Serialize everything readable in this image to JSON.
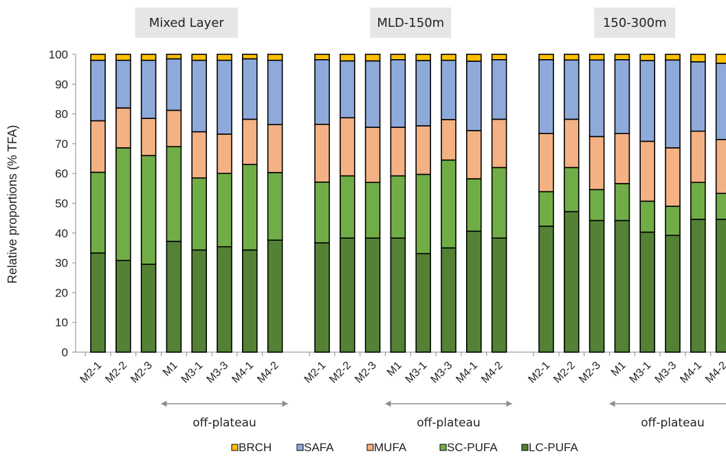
{
  "chart_data": {
    "type": "bar",
    "stacked": true,
    "ylabel": "Relative proportions (% TFA)",
    "ylim": [
      0,
      100
    ],
    "yticks": [
      "0",
      "10",
      "20",
      "30",
      "40",
      "50",
      "60",
      "70",
      "80",
      "90",
      "100"
    ],
    "categories": [
      "M2-1",
      "M2-2",
      "M2-3",
      "M1",
      "M3-1",
      "M3-3",
      "M4-1",
      "M4-2"
    ],
    "group_note": "off-plateau",
    "colors": {
      "BRCH": "#ffc000",
      "SAFA": "#8eaadb",
      "MUFA": "#f4b183",
      "SC-PUFA": "#70ad47",
      "LC-PUFA": "#548235"
    },
    "legend": [
      "BRCH",
      "SAFA",
      "MUFA",
      "SC-PUFA",
      "LC-PUFA"
    ],
    "panels": [
      {
        "title": "Mixed Layer",
        "series": [
          {
            "name": "LC-PUFA",
            "values": [
              33.3,
              30.8,
              29.5,
              37.2,
              34.3,
              35.4,
              34.3,
              37.6
            ]
          },
          {
            "name": "SC-PUFA",
            "values": [
              27.1,
              37.8,
              36.5,
              31.8,
              24.2,
              24.6,
              28.7,
              22.7
            ]
          },
          {
            "name": "MUFA",
            "values": [
              17.3,
              13.4,
              12.5,
              12.2,
              15.5,
              13.2,
              15.2,
              16.1
            ]
          },
          {
            "name": "SAFA",
            "values": [
              20.3,
              16.0,
              19.5,
              17.3,
              24.0,
              24.8,
              20.3,
              21.6
            ]
          },
          {
            "name": "BRCH",
            "values": [
              2.0,
              2.0,
              2.0,
              1.5,
              2.0,
              2.0,
              1.5,
              2.0
            ]
          }
        ]
      },
      {
        "title": "MLD-150m",
        "series": [
          {
            "name": "LC-PUFA",
            "values": [
              36.7,
              38.3,
              38.3,
              38.3,
              33.1,
              35.0,
              40.6,
              38.3
            ]
          },
          {
            "name": "SC-PUFA",
            "values": [
              20.4,
              20.9,
              18.7,
              20.9,
              26.6,
              29.5,
              17.6,
              23.7
            ]
          },
          {
            "name": "MUFA",
            "values": [
              19.4,
              19.5,
              18.5,
              16.3,
              16.3,
              13.6,
              16.2,
              16.2
            ]
          },
          {
            "name": "SAFA",
            "values": [
              21.7,
              19.1,
              22.3,
              22.7,
              21.9,
              19.9,
              23.3,
              20.0
            ]
          },
          {
            "name": "BRCH",
            "values": [
              1.8,
              2.2,
              2.2,
              1.8,
              2.1,
              2.0,
              2.3,
              1.8
            ]
          }
        ]
      },
      {
        "title": "150-300m",
        "series": [
          {
            "name": "LC-PUFA",
            "values": [
              42.3,
              47.2,
              44.2,
              44.2,
              40.3,
              39.2,
              44.6,
              44.6
            ]
          },
          {
            "name": "SC-PUFA",
            "values": [
              11.6,
              14.8,
              10.4,
              12.4,
              10.4,
              9.8,
              12.4,
              8.7
            ]
          },
          {
            "name": "MUFA",
            "values": [
              19.5,
              16.2,
              17.8,
              16.8,
              20.1,
              19.6,
              17.2,
              18.1
            ]
          },
          {
            "name": "SAFA",
            "values": [
              24.8,
              19.9,
              25.7,
              24.8,
              27.1,
              29.5,
              23.3,
              25.6
            ]
          },
          {
            "name": "BRCH",
            "values": [
              1.8,
              1.9,
              1.9,
              1.8,
              2.1,
              1.9,
              2.5,
              3.0
            ]
          }
        ]
      }
    ]
  }
}
